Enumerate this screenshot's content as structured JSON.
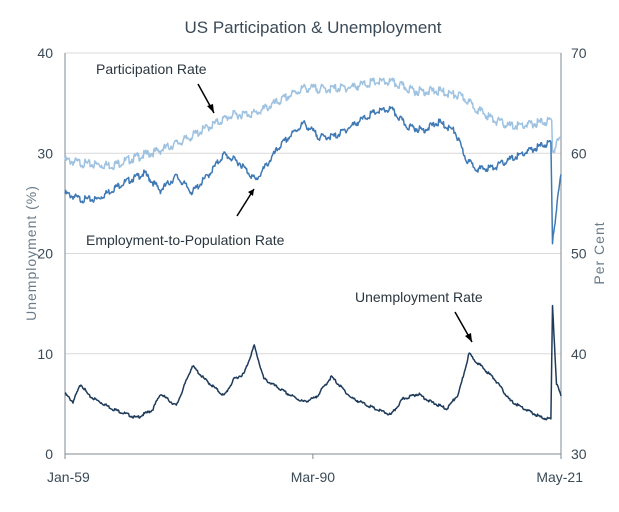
{
  "chart_data": {
    "type": "line",
    "title": "US Participation & Unemployment",
    "ylabel_left": "Unemployment  (%)",
    "ylabel_right": "Per Cent",
    "x_tick_labels": [
      "Jan-59",
      "Mar-90",
      "May-21"
    ],
    "xlim": [
      1959.0,
      2021.37
    ],
    "ylim_left": [
      0,
      40
    ],
    "ylim_right": [
      30,
      70
    ],
    "yticks_left": [
      0,
      10,
      20,
      30,
      40
    ],
    "yticks_right": [
      30,
      40,
      50,
      60,
      70
    ],
    "grid": true,
    "colors": {
      "participation": "#9ec2e0",
      "employment": "#3f79b4",
      "unemployment": "#1f3b5a"
    },
    "series": [
      {
        "name": "Participation Rate",
        "axis": "right",
        "x": [
          1959,
          1962,
          1965,
          1968,
          1971,
          1974,
          1977,
          1980,
          1983,
          1986,
          1989,
          1992,
          1995,
          1998,
          2000,
          2003,
          2006,
          2009,
          2011,
          2013,
          2015,
          2017,
          2019,
          2020.2,
          2020.3,
          2021.37
        ],
        "values": [
          59.3,
          58.9,
          58.8,
          59.6,
          60.3,
          61.3,
          62.6,
          63.8,
          64.0,
          65.2,
          66.5,
          66.4,
          66.6,
          67.1,
          67.1,
          66.2,
          66.2,
          65.6,
          64.3,
          63.3,
          62.7,
          62.8,
          63.1,
          63.3,
          60.2,
          61.6
        ]
      },
      {
        "name": "Employment-to-Population Rate",
        "axis": "right",
        "x": [
          1959,
          1961,
          1963,
          1966,
          1969,
          1971,
          1973,
          1975,
          1977,
          1979,
          1981,
          1983,
          1986,
          1989,
          1991,
          1993,
          1996,
          1998,
          2000,
          2002,
          2004,
          2006,
          2008,
          2009.5,
          2011,
          2013,
          2015,
          2017,
          2019,
          2020.1,
          2020.3,
          2021.37
        ],
        "values": [
          56.0,
          55.4,
          55.4,
          56.9,
          58.0,
          56.3,
          57.7,
          56.1,
          57.8,
          59.9,
          59.0,
          57.3,
          60.7,
          63.0,
          61.6,
          61.7,
          63.2,
          64.1,
          64.4,
          62.7,
          62.3,
          63.1,
          62.2,
          59.3,
          58.4,
          58.6,
          59.4,
          60.1,
          60.8,
          61.1,
          51.3,
          57.9
        ]
      },
      {
        "name": "Unemployment Rate",
        "axis": "left",
        "x": [
          1959,
          1960,
          1961,
          1962,
          1965,
          1968,
          1970,
          1971,
          1973,
          1975,
          1976.5,
          1979,
          1980.3,
          1981.5,
          1982.8,
          1984,
          1987,
          1989,
          1990.5,
          1992.5,
          1995,
          1998,
          2000,
          2001.5,
          2003.4,
          2005,
          2007,
          2008.5,
          2009.8,
          2011,
          2013,
          2015,
          2017,
          2019,
          2020.1,
          2020.3,
          2020.8,
          2021.37
        ],
        "values": [
          6.0,
          5.2,
          7.0,
          5.8,
          4.5,
          3.6,
          4.4,
          6.0,
          4.8,
          8.8,
          7.5,
          5.8,
          7.5,
          8.0,
          10.8,
          7.5,
          6.0,
          5.2,
          5.6,
          7.7,
          5.6,
          4.5,
          3.9,
          5.5,
          6.0,
          5.2,
          4.5,
          6.0,
          10.0,
          9.0,
          7.5,
          5.3,
          4.4,
          3.6,
          3.5,
          14.8,
          7.0,
          5.8
        ]
      }
    ],
    "annotations": [
      "Participation Rate",
      "Employment-to-Population Rate",
      "Unemployment Rate"
    ]
  }
}
